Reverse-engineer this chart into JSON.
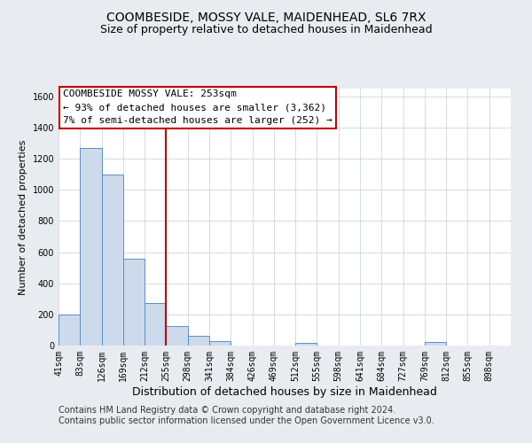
{
  "title": "COOMBESIDE, MOSSY VALE, MAIDENHEAD, SL6 7RX",
  "subtitle": "Size of property relative to detached houses in Maidenhead",
  "xlabel": "Distribution of detached houses by size in Maidenhead",
  "ylabel": "Number of detached properties",
  "footer_line1": "Contains HM Land Registry data © Crown copyright and database right 2024.",
  "footer_line2": "Contains public sector information licensed under the Open Government Licence v3.0.",
  "bin_labels": [
    "41sqm",
    "83sqm",
    "126sqm",
    "169sqm",
    "212sqm",
    "255sqm",
    "298sqm",
    "341sqm",
    "384sqm",
    "426sqm",
    "469sqm",
    "512sqm",
    "555sqm",
    "598sqm",
    "641sqm",
    "684sqm",
    "727sqm",
    "769sqm",
    "812sqm",
    "855sqm",
    "898sqm"
  ],
  "bar_values": [
    200,
    1270,
    1100,
    560,
    275,
    125,
    65,
    30,
    0,
    0,
    0,
    15,
    0,
    0,
    0,
    0,
    0,
    20,
    0,
    0,
    0
  ],
  "bar_color": "#cddaec",
  "bar_edgecolor": "#5b8ec4",
  "ylim": [
    0,
    1650
  ],
  "yticks": [
    0,
    200,
    400,
    600,
    800,
    1000,
    1200,
    1400,
    1600
  ],
  "annotation_line1": "COOMBESIDE MOSSY VALE: 253sqm",
  "annotation_line2": "← 93% of detached houses are smaller (3,362)",
  "annotation_line3": "7% of semi-detached houses are larger (252) →",
  "annotation_box_color": "#ffffff",
  "annotation_box_edgecolor": "#c00000",
  "vline_color": "#c00000",
  "vline_x": 4.98,
  "background_color": "#e8ecf0",
  "plot_bg_color": "#ffffff",
  "grid_color": "#c5cdd6",
  "title_fontsize": 10,
  "subtitle_fontsize": 9,
  "xlabel_fontsize": 9,
  "ylabel_fontsize": 8,
  "tick_fontsize": 7,
  "annotation_fontsize": 8,
  "footer_fontsize": 7
}
